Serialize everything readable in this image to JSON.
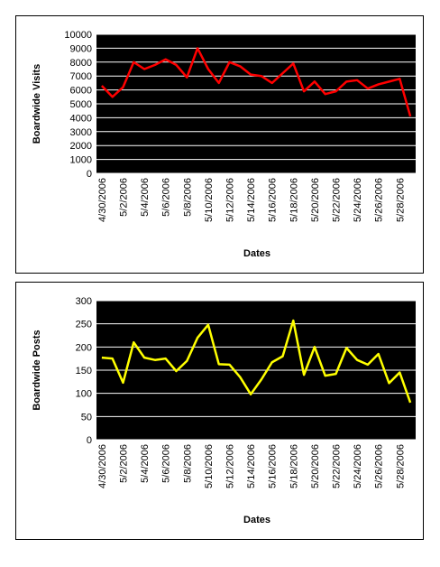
{
  "chart_data": [
    {
      "type": "line",
      "x_label": "Dates",
      "y_label": "Boardwide Visits",
      "categories": [
        "4/30/2006",
        null,
        "5/2/2006",
        null,
        "5/4/2006",
        null,
        "5/6/2006",
        null,
        "5/8/2006",
        null,
        "5/10/2006",
        null,
        "5/12/2006",
        null,
        "5/14/2006",
        null,
        "5/16/2006",
        null,
        "5/18/2006",
        null,
        "5/20/2006",
        null,
        "5/22/2006",
        null,
        "5/24/2006",
        null,
        "5/26/2006",
        null,
        "5/28/2006",
        null
      ],
      "values": [
        6300,
        5500,
        6200,
        8000,
        7500,
        7800,
        8200,
        7800,
        6900,
        9000,
        7500,
        6500,
        8000,
        7700,
        7100,
        7000,
        6500,
        7200,
        7900,
        5900,
        6600,
        5700,
        5900,
        6600,
        6700,
        6100,
        6400,
        6600,
        6800,
        4100
      ],
      "color": "#ff0000",
      "ylim": [
        0,
        10000
      ],
      "yticks": [
        0,
        1000,
        2000,
        3000,
        4000,
        5000,
        6000,
        7000,
        8000,
        9000,
        10000
      ],
      "grid": true
    },
    {
      "type": "line",
      "x_label": "Dates",
      "y_label": "Boardwide Posts",
      "categories": [
        "4/30/2006",
        null,
        "5/2/2006",
        null,
        "5/4/2006",
        null,
        "5/6/2006",
        null,
        "5/8/2006",
        null,
        "5/10/2006",
        null,
        "5/12/2006",
        null,
        "5/14/2006",
        null,
        "5/16/2006",
        null,
        "5/18/2006",
        null,
        "5/20/2006",
        null,
        "5/22/2006",
        null,
        "5/24/2006",
        null,
        "5/26/2006",
        null,
        "5/28/2006",
        null
      ],
      "values": [
        177,
        175,
        123,
        210,
        177,
        172,
        175,
        148,
        170,
        220,
        248,
        163,
        162,
        135,
        98,
        130,
        167,
        180,
        257,
        140,
        200,
        138,
        142,
        198,
        172,
        162,
        185,
        122,
        145,
        80
      ],
      "color": "#ffff00",
      "ylim": [
        0,
        300
      ],
      "yticks": [
        0,
        50,
        100,
        150,
        200,
        250,
        300
      ],
      "grid": true
    }
  ]
}
